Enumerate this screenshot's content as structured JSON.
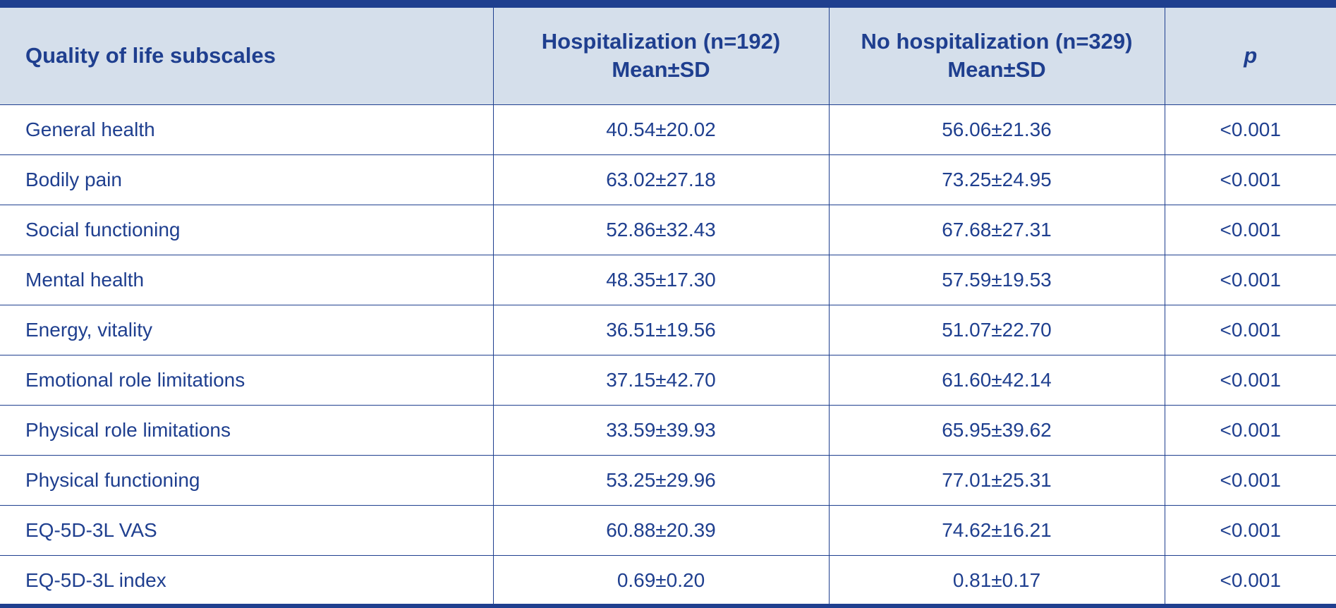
{
  "table": {
    "headers": {
      "subscale": "Quality of life subscales",
      "hosp_line1": "Hospitalization (n=192)",
      "hosp_line2": "Mean±SD",
      "nohosp_line1": "No hospitalization (n=329)",
      "nohosp_line2": "Mean±SD",
      "p": "p"
    },
    "rows": [
      {
        "label": "General health",
        "hosp": "40.54±20.02",
        "nohosp": "56.06±21.36",
        "p": "<0.001"
      },
      {
        "label": "Bodily pain",
        "hosp": "63.02±27.18",
        "nohosp": "73.25±24.95",
        "p": "<0.001"
      },
      {
        "label": "Social functioning",
        "hosp": "52.86±32.43",
        "nohosp": "67.68±27.31",
        "p": "<0.001"
      },
      {
        "label": "Mental health",
        "hosp": "48.35±17.30",
        "nohosp": "57.59±19.53",
        "p": "<0.001"
      },
      {
        "label": "Energy, vitality",
        "hosp": "36.51±19.56",
        "nohosp": "51.07±22.70",
        "p": "<0.001"
      },
      {
        "label": "Emotional role limitations",
        "hosp": "37.15±42.70",
        "nohosp": "61.60±42.14",
        "p": "<0.001"
      },
      {
        "label": "Physical role limitations",
        "hosp": "33.59±39.93",
        "nohosp": "65.95±39.62",
        "p": "<0.001"
      },
      {
        "label": "Physical functioning",
        "hosp": "53.25±29.96",
        "nohosp": "77.01±25.31",
        "p": "<0.001"
      },
      {
        "label": "EQ-5D-3L VAS",
        "hosp": "60.88±20.39",
        "nohosp": "74.62±16.21",
        "p": "<0.001"
      },
      {
        "label": "EQ-5D-3L index",
        "hosp": "0.69±0.20",
        "nohosp": "0.81±0.17",
        "p": "<0.001"
      }
    ]
  }
}
